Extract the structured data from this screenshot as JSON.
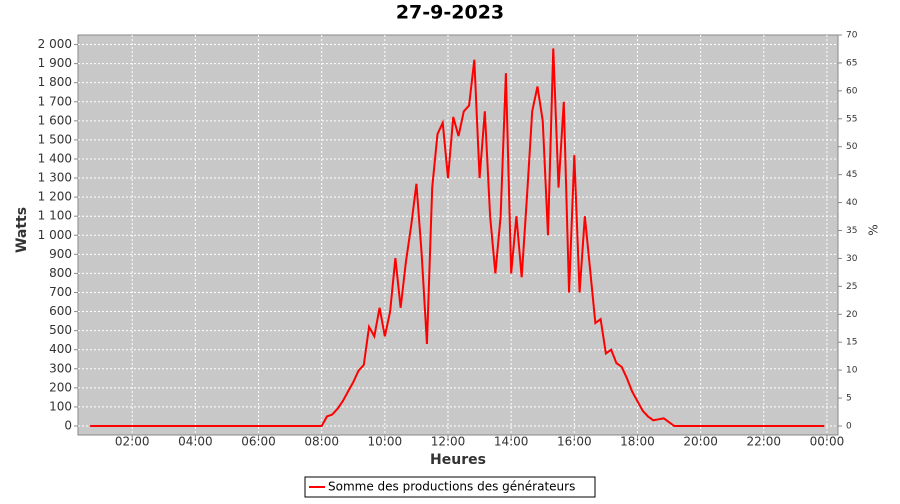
{
  "chart_data": {
    "type": "line",
    "title": "27-9-2023",
    "x_label": "Heures",
    "y_label": "Watts",
    "y2_label": "%",
    "x": [
      "00:40",
      "07:50",
      "08:00",
      "08:10",
      "08:20",
      "08:30",
      "08:40",
      "08:50",
      "09:00",
      "09:10",
      "09:20",
      "09:30",
      "09:40",
      "09:50",
      "10:00",
      "10:10",
      "10:20",
      "10:30",
      "10:40",
      "10:50",
      "11:00",
      "11:10",
      "11:20",
      "11:30",
      "11:40",
      "11:50",
      "12:00",
      "12:10",
      "12:20",
      "12:30",
      "12:40",
      "12:50",
      "13:00",
      "13:10",
      "13:20",
      "13:30",
      "13:40",
      "13:50",
      "14:00",
      "14:10",
      "14:20",
      "14:30",
      "14:40",
      "14:50",
      "15:00",
      "15:10",
      "15:20",
      "15:30",
      "15:40",
      "15:50",
      "16:00",
      "16:10",
      "16:20",
      "16:30",
      "16:40",
      "16:50",
      "17:00",
      "17:10",
      "17:20",
      "17:30",
      "17:40",
      "17:50",
      "18:00",
      "18:10",
      "18:20",
      "18:30",
      "18:40",
      "18:50",
      "19:00",
      "19:10",
      "23:55"
    ],
    "series": [
      {
        "name": "Somme des productions des  générateurs",
        "color": "#ff0000",
        "values": [
          0,
          0,
          0,
          50,
          60,
          90,
          130,
          180,
          230,
          290,
          320,
          520,
          470,
          620,
          470,
          600,
          880,
          620,
          860,
          1050,
          1270,
          900,
          430,
          1250,
          1530,
          1590,
          1300,
          1620,
          1520,
          1650,
          1680,
          1920,
          1300,
          1650,
          1100,
          800,
          1100,
          1850,
          800,
          1100,
          780,
          1200,
          1650,
          1780,
          1600,
          1000,
          1980,
          1250,
          1700,
          700,
          1420,
          700,
          1100,
          820,
          540,
          560,
          380,
          400,
          330,
          310,
          250,
          180,
          130,
          80,
          50,
          30,
          35,
          40,
          20,
          0,
          0
        ]
      }
    ],
    "xlim": [
      "00:17",
      "24:21"
    ],
    "xticks": [
      "02:00",
      "04:00",
      "06:00",
      "08:00",
      "10:00",
      "12:00",
      "14:00",
      "16:00",
      "18:00",
      "20:00",
      "22:00",
      {
        "value": "24:00",
        "label": "00:00"
      }
    ],
    "ylim": [
      0,
      2050
    ],
    "yticks": [
      0,
      100,
      200,
      300,
      400,
      500,
      600,
      700,
      800,
      900,
      {
        "value": 1000,
        "label": "1 000"
      },
      {
        "value": 1100,
        "label": "1 100"
      },
      {
        "value": 1200,
        "label": "1 200"
      },
      {
        "value": 1300,
        "label": "1 300"
      },
      {
        "value": 1400,
        "label": "1 400"
      },
      {
        "value": 1500,
        "label": "1 500"
      },
      {
        "value": 1600,
        "label": "1 600"
      },
      {
        "value": 1700,
        "label": "1 700"
      },
      {
        "value": 1800,
        "label": "1 800"
      },
      {
        "value": 1900,
        "label": "1 900"
      },
      {
        "value": 2000,
        "label": "2 000"
      }
    ],
    "y2lim": [
      0,
      70
    ],
    "y2ticks": [
      0,
      5,
      10,
      15,
      20,
      25,
      30,
      35,
      40,
      45,
      50,
      55,
      60,
      65,
      70
    ],
    "grid": true
  }
}
